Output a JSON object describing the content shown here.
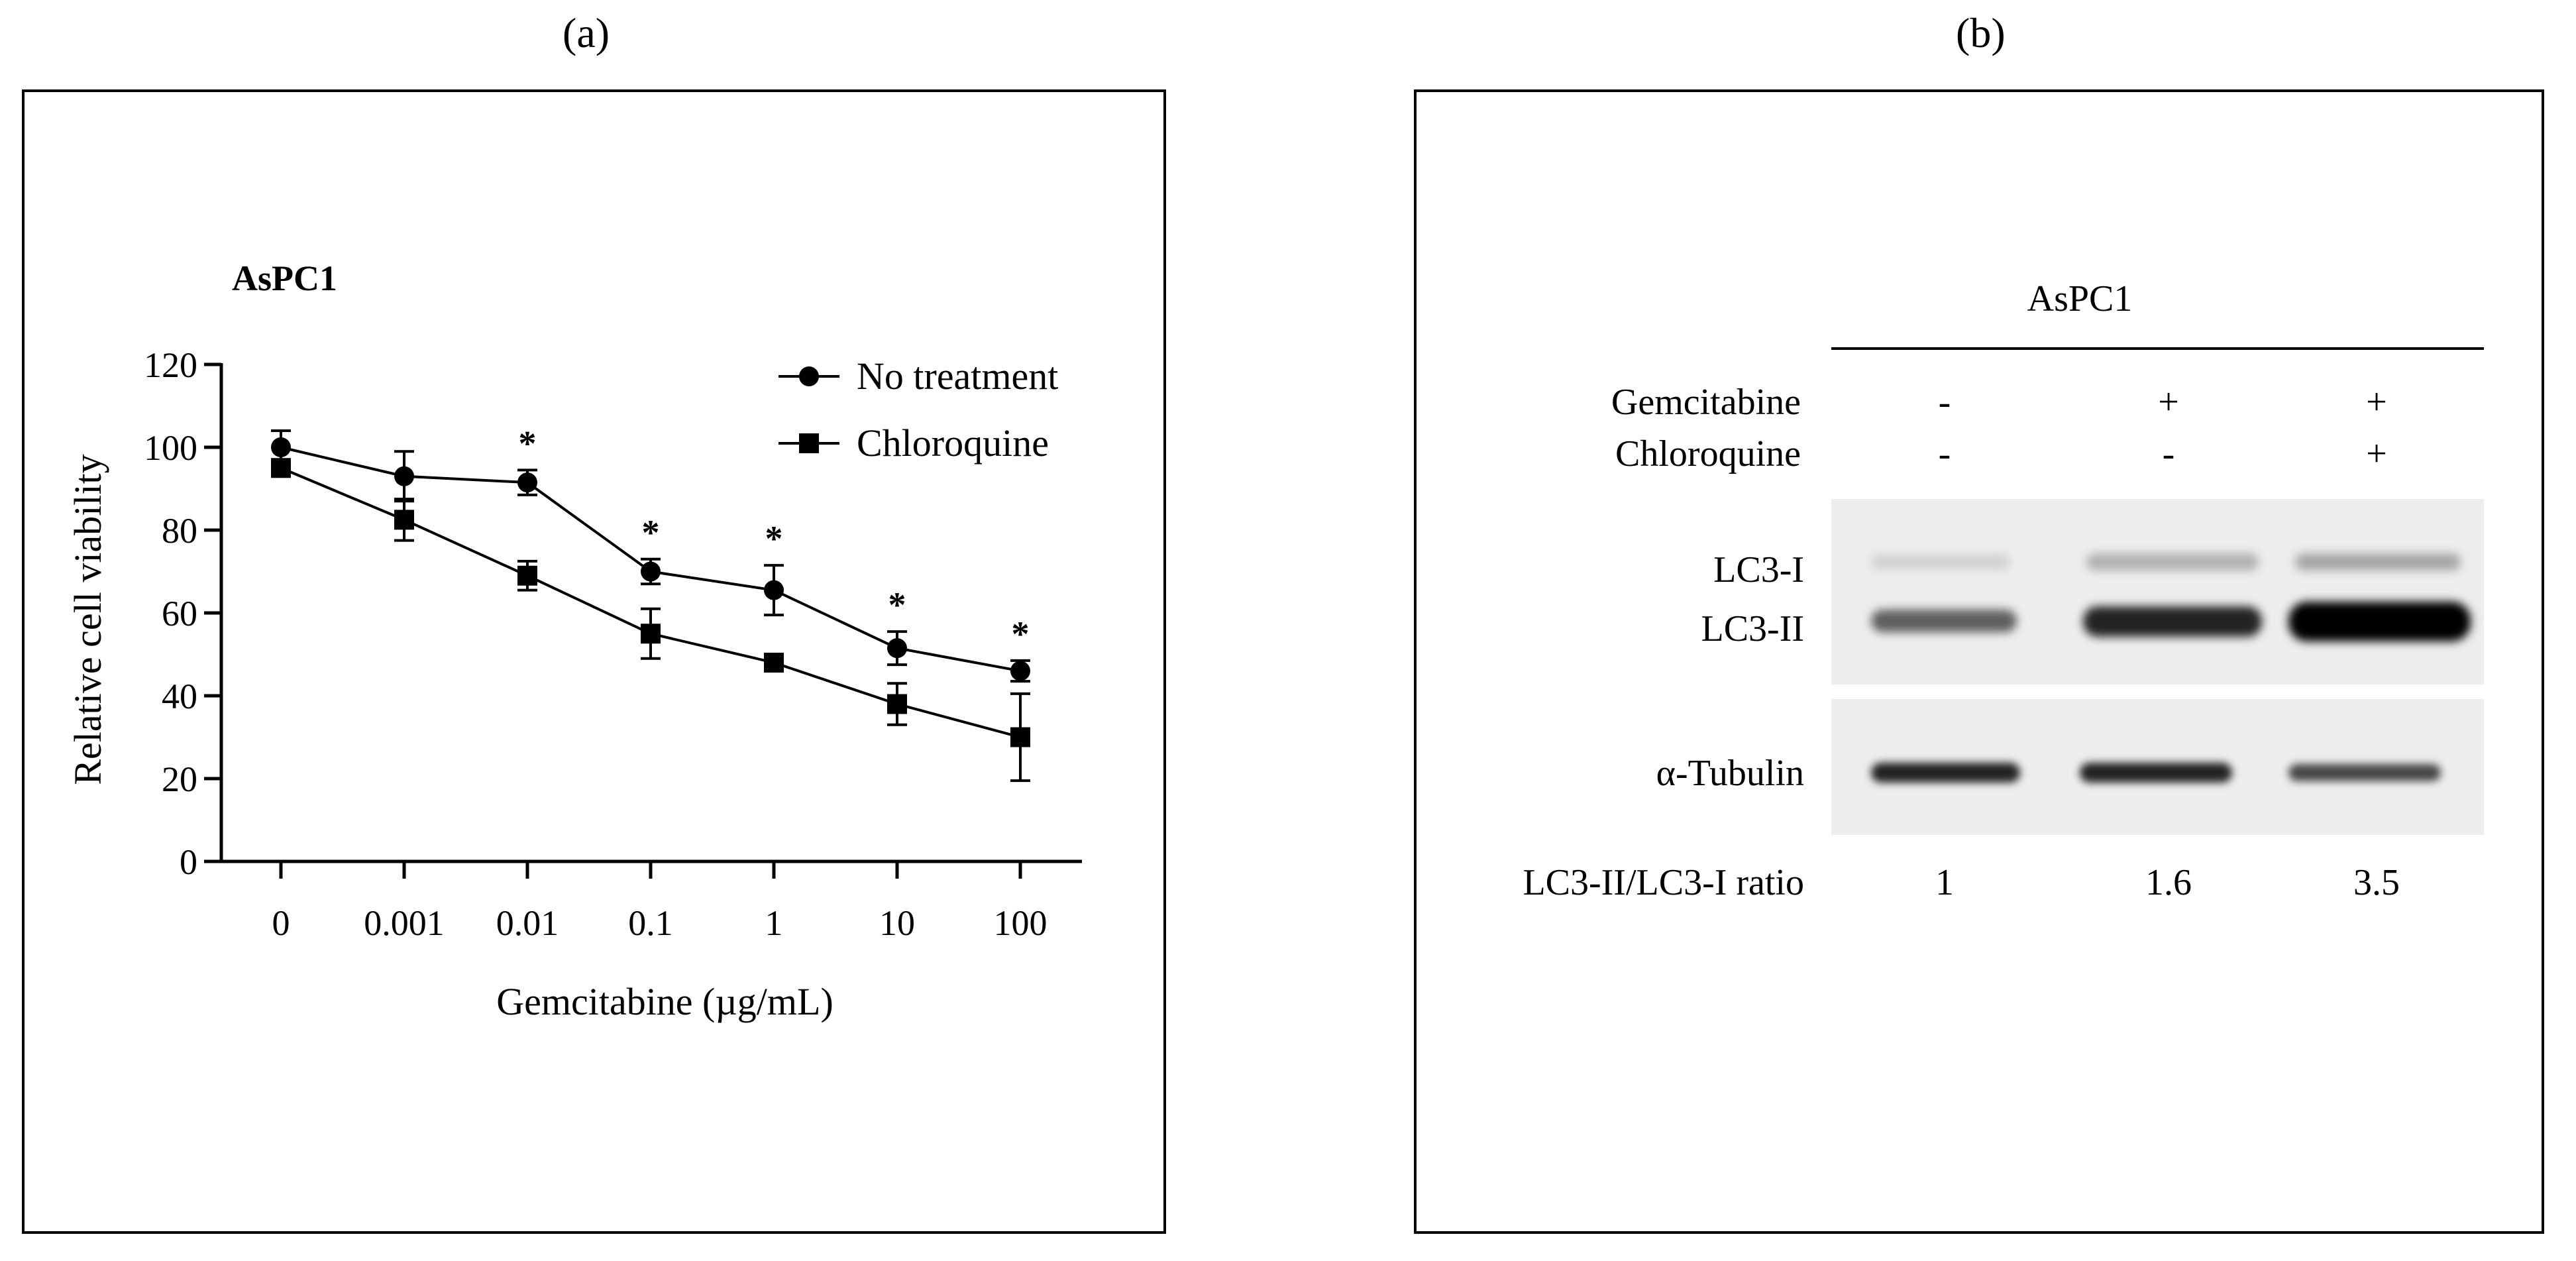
{
  "figure": {
    "panel_a_label": "(a)",
    "panel_b_label": "(b)"
  },
  "chart_data": {
    "type": "line",
    "title": "AsPC1",
    "xlabel": "Gemcitabine (µg/mL)",
    "ylabel": "Relative cell viability",
    "categories": [
      "0",
      "0.001",
      "0.01",
      "0.1",
      "1",
      "10",
      "100"
    ],
    "ylim": [
      0,
      120
    ],
    "yticks": [
      "0",
      "20",
      "40",
      "60",
      "80",
      "100",
      "120"
    ],
    "legend_position": "top-right",
    "series": [
      {
        "name": "No treatment",
        "marker": "circle",
        "values": [
          100,
          93,
          91.5,
          70,
          65.5,
          51.5,
          46
        ],
        "errors": [
          4,
          6,
          3,
          3,
          6,
          4,
          2.5
        ]
      },
      {
        "name": "Chloroquine",
        "marker": "square",
        "values": [
          95,
          82.5,
          69,
          55,
          48,
          38,
          30
        ],
        "errors": [
          2,
          5,
          3.5,
          6,
          2,
          5,
          10.5
        ]
      }
    ],
    "significance_marker": "*",
    "significant_categories": [
      "0.01",
      "0.1",
      "1",
      "10",
      "100"
    ]
  },
  "blot": {
    "cell_line": "AsPC1",
    "treatments": [
      {
        "label": "Gemcitabine",
        "values": [
          "-",
          "+",
          "+"
        ]
      },
      {
        "label": "Chloroquine",
        "values": [
          "-",
          "-",
          "+"
        ]
      }
    ],
    "band_labels": [
      "LC3-I",
      "LC3-II",
      "α-Tubulin"
    ],
    "ratio_label": "LC3-II/LC3-I ratio",
    "ratios": [
      "1",
      "1.6",
      "3.5"
    ],
    "band_intensity": {
      "lc3_i": [
        0.12,
        0.25,
        0.3
      ],
      "lc3_ii": [
        0.6,
        0.85,
        1.0
      ],
      "tubulin": [
        0.85,
        0.85,
        0.7
      ]
    }
  }
}
